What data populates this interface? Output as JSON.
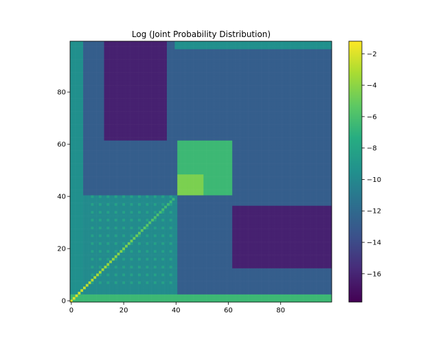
{
  "chart_data": {
    "type": "heatmap",
    "title": "Log (Joint Probability Distribution)",
    "xlabel": "",
    "ylabel": "",
    "grid_size": 100,
    "xlim": [
      0,
      99
    ],
    "ylim": [
      0,
      99
    ],
    "origin": "lower",
    "colormap": "viridis",
    "colorbar": {
      "vmin": -17.8,
      "vmax": -1.2,
      "ticks": [
        -2,
        -4,
        -6,
        -8,
        -10,
        -12,
        -14,
        -16
      ],
      "tick_labels": [
        "−2",
        "−4",
        "−6",
        "−8",
        "−10",
        "−12",
        "−14",
        "−16"
      ]
    },
    "xticks": [
      0,
      20,
      40,
      60,
      80
    ],
    "xtick_labels": [
      "0",
      "20",
      "40",
      "60",
      "80"
    ],
    "yticks": [
      0,
      20,
      40,
      60,
      80
    ],
    "ytick_labels": [
      "0",
      "20",
      "40",
      "60",
      "80"
    ],
    "grid": false,
    "regions": [
      {
        "x": [
          0,
          99
        ],
        "y": [
          0,
          99
        ],
        "value": -12.8,
        "note": "background"
      },
      {
        "x": [
          0,
          40
        ],
        "y": [
          0,
          40
        ],
        "value": -9.8,
        "note": "lower-left block"
      },
      {
        "x": [
          41,
          61
        ],
        "y": [
          41,
          61
        ],
        "value": -6.5,
        "note": "central block"
      },
      {
        "x": [
          41,
          50
        ],
        "y": [
          41,
          48
        ],
        "value": -4.5,
        "note": "central block peak"
      },
      {
        "x": [
          13,
          36
        ],
        "y": [
          62,
          99
        ],
        "value": -16.2,
        "note": "upper-left dark block"
      },
      {
        "x": [
          62,
          99
        ],
        "y": [
          13,
          36
        ],
        "value": -16.2,
        "note": "lower-right dark block"
      },
      {
        "x": [
          0,
          4
        ],
        "y": [
          0,
          99
        ],
        "value": -9.5,
        "note": "left edge"
      },
      {
        "x": [
          0,
          99
        ],
        "y": [
          0,
          2
        ],
        "value": -6.5,
        "note": "bottom edge"
      },
      {
        "x": [
          40,
          99
        ],
        "y": [
          97,
          99
        ],
        "value": -9.5,
        "note": "top edge"
      },
      {
        "x": [
          0,
          99
        ],
        "y": [
          0,
          99
        ],
        "value": -1.5,
        "note": "diagonal near origin"
      }
    ]
  }
}
